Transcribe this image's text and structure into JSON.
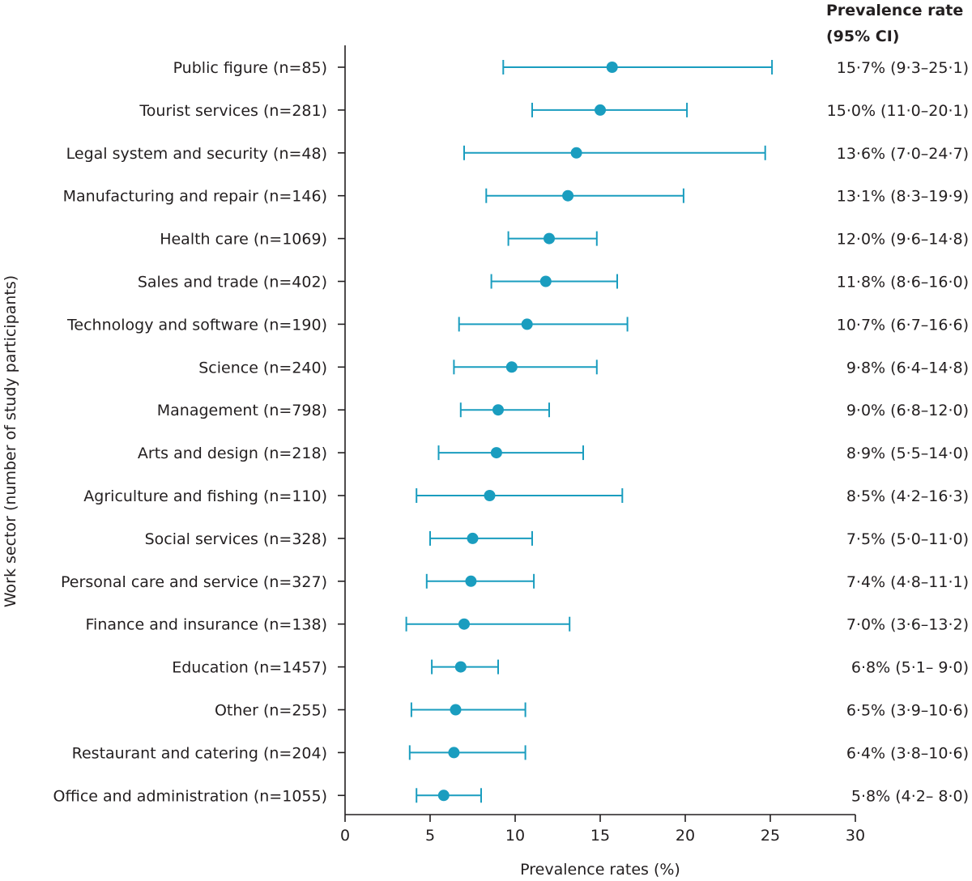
{
  "chart_data": {
    "type": "forest",
    "ylabel": "Work sector (number of study participants)",
    "xlabel": "Prevalence rates (%)",
    "xlim": [
      0,
      30
    ],
    "xticks": [
      "0",
      "5",
      "10",
      "15",
      "20",
      "25",
      "30"
    ],
    "right_header": [
      "Prevalence rate",
      "(95% CI)"
    ],
    "categories": [
      "Public figure (n=85)",
      "Tourist services (n=281)",
      "Legal system and security (n=48)",
      "Manufacturing and repair (n=146)",
      "Health care (n=1069)",
      "Sales and trade (n=402)",
      "Technology and software (n=190)",
      "Science (n=240)",
      "Management (n=798)",
      "Arts and design (n=218)",
      "Agriculture and fishing (n=110)",
      "Social services (n=328)",
      "Personal care and service (n=327)",
      "Finance and insurance (n=138)",
      "Education (n=1457)",
      "Other (n=255)",
      "Restaurant and catering (n=204)",
      "Office and administration (n=1055)"
    ],
    "estimates": [
      15.7,
      15.0,
      13.6,
      13.1,
      12.0,
      11.8,
      10.7,
      9.8,
      9.0,
      8.9,
      8.5,
      7.5,
      7.4,
      7.0,
      6.8,
      6.5,
      6.4,
      5.8
    ],
    "ci_low": [
      9.3,
      11.0,
      7.0,
      8.3,
      9.6,
      8.6,
      6.7,
      6.4,
      6.8,
      5.5,
      4.2,
      5.0,
      4.8,
      3.6,
      5.1,
      3.9,
      3.8,
      4.2
    ],
    "ci_high": [
      25.1,
      20.1,
      24.7,
      19.9,
      14.8,
      16.0,
      16.6,
      14.8,
      12.0,
      14.0,
      16.3,
      11.0,
      11.1,
      13.2,
      9.0,
      10.6,
      10.6,
      8.0
    ],
    "rate_labels": [
      "15·7% (9·3–25·1)",
      "15·0% (11·0–20·1)",
      "13·6% (7·0–24·7)",
      "13·1% (8·3–19·9)",
      "12·0% (9·6–14·8)",
      "11·8% (8·6–16·0)",
      "10·7% (6·7–16·6)",
      "9·8% (6·4–14·8)",
      "9·0% (6·8–12·0)",
      "8·9% (5·5–14·0)",
      "8·5% (4·2–16·3)",
      "7·5% (5·0–11·0)",
      "7·4% (4·8–11·1)",
      "7·0% (3·6–13·2)",
      "6·8% (5·1– 9·0)",
      "6·5% (3·9–10·6)",
      "6·4% (3·8–10·6)",
      "5·8% (4·2– 8·0)"
    ],
    "colors": {
      "marker": "#1a9dbf",
      "axis": "#231f20",
      "text": "#231f20"
    }
  }
}
